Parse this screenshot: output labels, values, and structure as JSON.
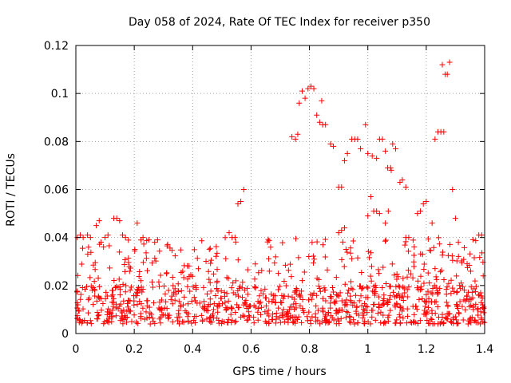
{
  "chart_data": {
    "type": "scatter",
    "title": "Day 058 of 2024, Rate Of TEC Index for receiver p350",
    "xlabel": "GPS time / hours",
    "ylabel": "ROTI / TECUs",
    "xlim": [
      0,
      1.4
    ],
    "ylim": [
      0,
      0.12
    ],
    "xticks": [
      0,
      0.2,
      0.4,
      0.6,
      0.8,
      1,
      1.2,
      1.4
    ],
    "xtick_labels": [
      "0",
      "0.2",
      "0.4",
      "0.6",
      "0.8",
      "1",
      "1.2",
      "1.4"
    ],
    "yticks": [
      0,
      0.02,
      0.04,
      0.06,
      0.08,
      0.1,
      0.12
    ],
    "ytick_labels": [
      "0",
      "0.02",
      "0.04",
      "0.06",
      "0.08",
      "0.1",
      "0.12"
    ],
    "grid": true,
    "marker": "+",
    "color": "#ff0000",
    "series": [
      {
        "name": "ROTI",
        "points": [
          [
            0.765,
            0.096
          ],
          [
            0.775,
            0.101
          ],
          [
            0.785,
            0.098
          ],
          [
            0.795,
            0.102
          ],
          [
            0.805,
            0.103
          ],
          [
            0.815,
            0.102
          ],
          [
            0.825,
            0.091
          ],
          [
            0.835,
            0.088
          ],
          [
            0.845,
            0.087
          ],
          [
            0.855,
            0.087
          ],
          [
            0.842,
            0.097
          ],
          [
            0.74,
            0.082
          ],
          [
            0.752,
            0.081
          ],
          [
            0.76,
            0.083
          ],
          [
            0.872,
            0.079
          ],
          [
            0.882,
            0.078
          ],
          [
            0.9,
            0.061
          ],
          [
            0.91,
            0.061
          ],
          [
            0.92,
            0.072
          ],
          [
            0.93,
            0.075
          ],
          [
            0.945,
            0.081
          ],
          [
            0.955,
            0.081
          ],
          [
            0.965,
            0.081
          ],
          [
            0.975,
            0.077
          ],
          [
            0.992,
            0.087
          ],
          [
            1.0,
            0.075
          ],
          [
            1.01,
            0.057
          ],
          [
            1.015,
            0.074
          ],
          [
            1.03,
            0.073
          ],
          [
            1.04,
            0.081
          ],
          [
            1.05,
            0.081
          ],
          [
            1.06,
            0.076
          ],
          [
            1.068,
            0.069
          ],
          [
            1.078,
            0.069
          ],
          [
            1.085,
            0.079
          ],
          [
            1.095,
            0.077
          ],
          [
            1.08,
            0.068
          ],
          [
            1.11,
            0.063
          ],
          [
            1.118,
            0.064
          ],
          [
            1.13,
            0.061
          ],
          [
            1.17,
            0.05
          ],
          [
            1.18,
            0.051
          ],
          [
            1.19,
            0.054
          ],
          [
            1.2,
            0.055
          ],
          [
            1.23,
            0.081
          ],
          [
            1.24,
            0.084
          ],
          [
            1.25,
            0.084
          ],
          [
            1.26,
            0.084
          ],
          [
            1.255,
            0.112
          ],
          [
            1.265,
            0.108
          ],
          [
            1.272,
            0.108
          ],
          [
            1.28,
            0.113
          ],
          [
            1.29,
            0.06
          ],
          [
            1.3,
            0.048
          ],
          [
            0.525,
            0.042
          ],
          [
            0.535,
            0.04
          ],
          [
            0.545,
            0.04
          ],
          [
            0.555,
            0.054
          ],
          [
            0.565,
            0.055
          ],
          [
            0.575,
            0.06
          ],
          [
            0.005,
            0.04
          ],
          [
            0.015,
            0.041
          ],
          [
            0.025,
            0.04
          ],
          [
            0.04,
            0.041
          ],
          [
            0.05,
            0.04
          ],
          [
            0.07,
            0.045
          ],
          [
            0.08,
            0.047
          ],
          [
            0.1,
            0.04
          ],
          [
            0.11,
            0.041
          ],
          [
            0.13,
            0.048
          ],
          [
            0.14,
            0.048
          ],
          [
            0.15,
            0.047
          ],
          [
            0.16,
            0.041
          ],
          [
            0.17,
            0.04
          ],
          [
            0.21,
            0.046
          ],
          [
            0.23,
            0.04
          ],
          [
            0.25,
            0.039
          ],
          [
            0.27,
            0.038
          ],
          [
            0.28,
            0.039
          ],
          [
            0.9,
            0.042
          ],
          [
            0.91,
            0.043
          ],
          [
            0.92,
            0.044
          ],
          [
            1.0,
            0.049
          ],
          [
            1.02,
            0.051
          ],
          [
            1.03,
            0.051
          ],
          [
            1.04,
            0.05
          ],
          [
            1.06,
            0.046
          ],
          [
            1.07,
            0.051
          ],
          [
            1.13,
            0.04
          ],
          [
            1.14,
            0.04
          ],
          [
            1.22,
            0.046
          ],
          [
            1.31,
            0.038
          ],
          [
            1.38,
            0.041
          ],
          [
            1.39,
            0.041
          ]
        ]
      }
    ],
    "background_band": {
      "x_range": [
        0,
        1.4
      ],
      "y_low_range": [
        0.004,
        0.02
      ],
      "y_mid_range": [
        0.02,
        0.04
      ],
      "count_low": 820,
      "count_mid": 230
    }
  }
}
